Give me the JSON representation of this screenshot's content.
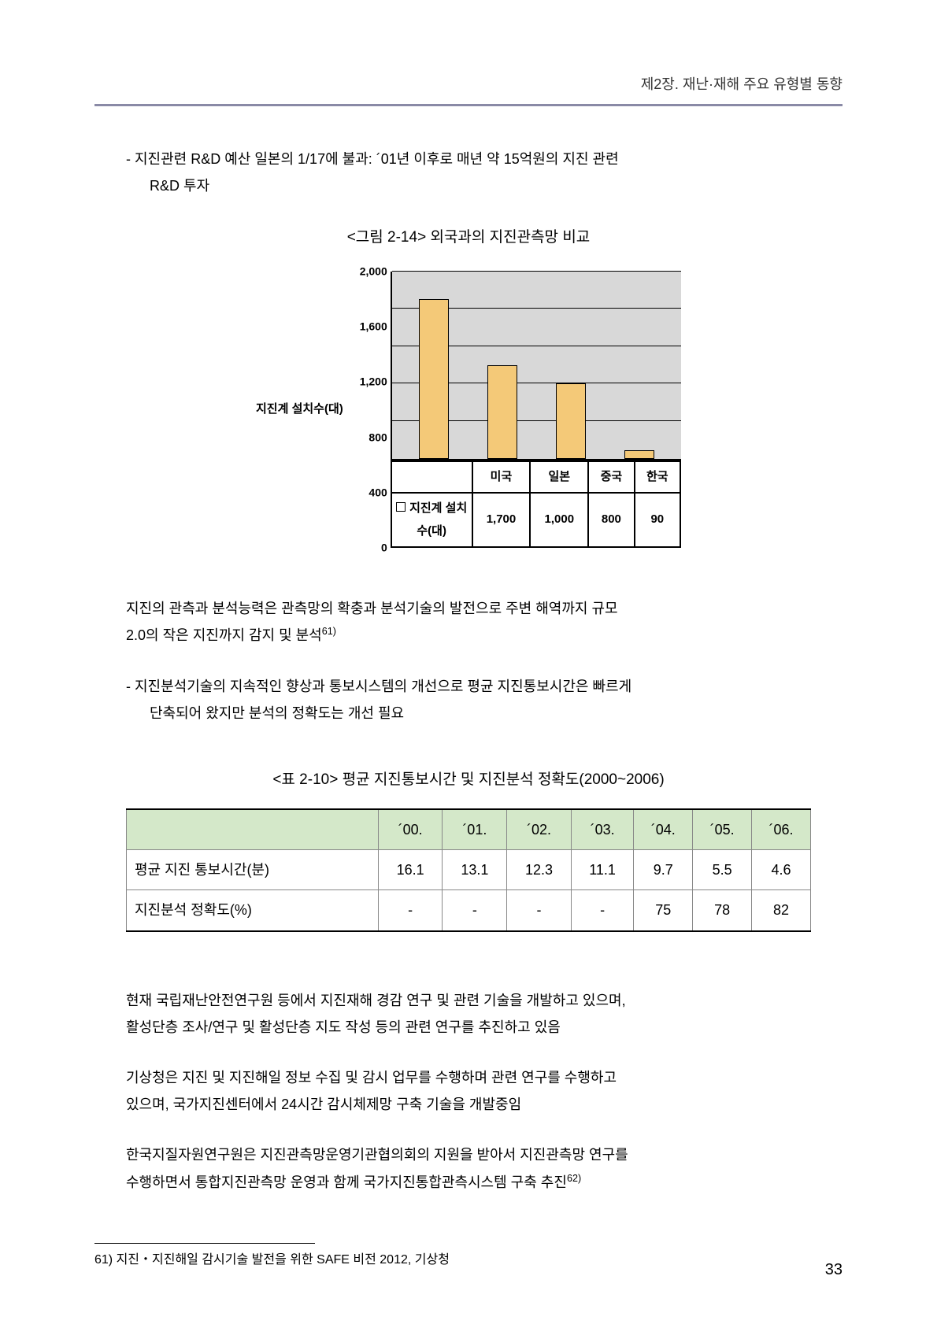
{
  "header": "제2장. 재난·재해 주요 유형별 동향",
  "para1_l1": "- 지진관련 R&D 예산 일본의 1/17에 불과: ´01년 이후로 매년 약 15억원의 지진 관련",
  "para1_l2": "R&D 투자",
  "fig_title": "<그림 2-14> 외국과의 지진관측망 비교",
  "chart": {
    "y_label": "지진계 설치수(대)",
    "y_ticks": [
      "2,000",
      "1,600",
      "1,200",
      "800",
      "400",
      "0"
    ],
    "y_max": 2000,
    "categories": [
      "미국",
      "일본",
      "중국",
      "한국"
    ],
    "values": [
      1700,
      1000,
      800,
      90
    ],
    "value_labels": [
      "1,700",
      "1,000",
      "800",
      "90"
    ],
    "legend": "지진계 설치수(대)",
    "bar_color": "#f4c978",
    "plot_bg": "#d8d8d8"
  },
  "para2_l1": "지진의 관측과 분석능력은 관측망의 확충과 분석기술의 발전으로 주변 해역까지 규모",
  "para2_l2": "2.0의 작은 지진까지 감지 및 분석",
  "para2_sup": "61)",
  "para3_l1": "- 지진분석기술의 지속적인 향상과 통보시스템의 개선으로 평균 지진통보시간은 빠르게",
  "para3_l2": "단축되어 왔지만 분석의 정확도는 개선 필요",
  "table_title": "<표 2-10> 평균 지진통보시간 및 지진분석 정확도(2000~2006)",
  "table": {
    "cols": [
      "",
      "´00.",
      "´01.",
      "´02.",
      "´03.",
      "´04.",
      "´05.",
      "´06."
    ],
    "rows": [
      [
        "평균 지진 통보시간(분)",
        "16.1",
        "13.1",
        "12.3",
        "11.1",
        "9.7",
        "5.5",
        "4.6"
      ],
      [
        "지진분석 정확도(%)",
        "-",
        "-",
        "-",
        "-",
        "75",
        "78",
        "82"
      ]
    ]
  },
  "para4_l1": "현재 국립재난안전연구원 등에서 지진재해 경감 연구 및 관련 기술을 개발하고 있으며,",
  "para4_l2": "활성단층 조사/연구 및 활성단층 지도 작성 등의 관련 연구를 추진하고 있음",
  "para5_l1": "기상청은 지진 및 지진해일 정보 수집 및 감시 업무를 수행하며 관련 연구를 수행하고",
  "para5_l2": "있으며, 국가지진센터에서 24시간 감시체제망 구축 기술을 개발중임",
  "para6_l1": "한국지질자원연구원은 지진관측망운영기관협의회의 지원을 받아서 지진관측망 연구를",
  "para6_l2": "수행하면서 통합지진관측망 운영과 함께 국가지진통합관측시스템 구축 추진",
  "para6_sup": "62)",
  "footnote": "61) 지진・지진해일 감시기술 발전을 위한 SAFE 비전 2012, 기상청",
  "page_num": "33"
}
